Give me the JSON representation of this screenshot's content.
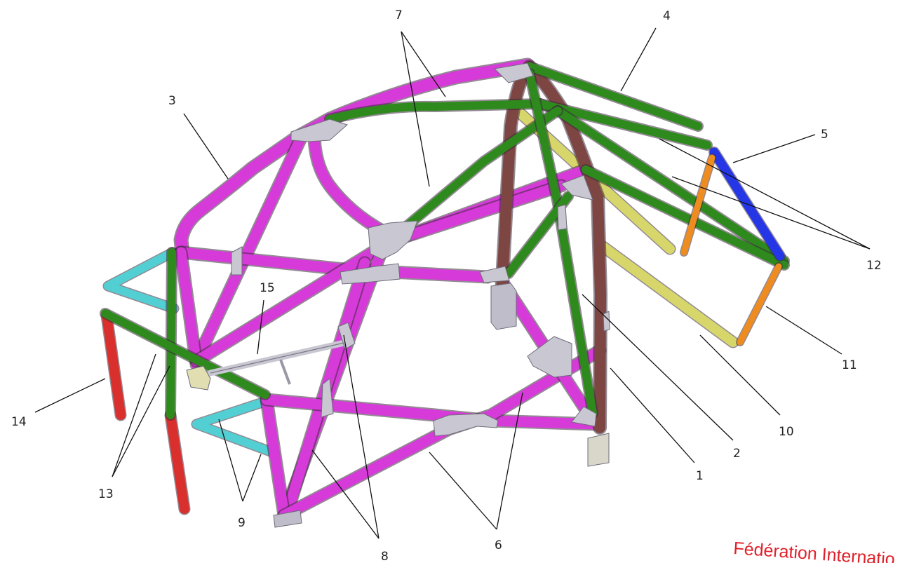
{
  "diagram": {
    "callout_labels": [
      "1",
      "2",
      "3",
      "4",
      "5",
      "6",
      "7",
      "8",
      "9",
      "10",
      "11",
      "12",
      "13",
      "14",
      "15"
    ],
    "watermark": "Fédération Internatio",
    "colors": {
      "magenta_tube": "#d63ad8",
      "green_tube": "#2e8a1d",
      "brown_tube": "#7d4642",
      "yellow_tube": "#d7d66a",
      "blue_tube": "#2436e6",
      "orange_tube": "#ef8c20",
      "cyan_tube": "#52cfd2",
      "red_tube": "#d9302e",
      "gusset": "#c9c7d2",
      "brand_red": "#e0202a"
    }
  }
}
